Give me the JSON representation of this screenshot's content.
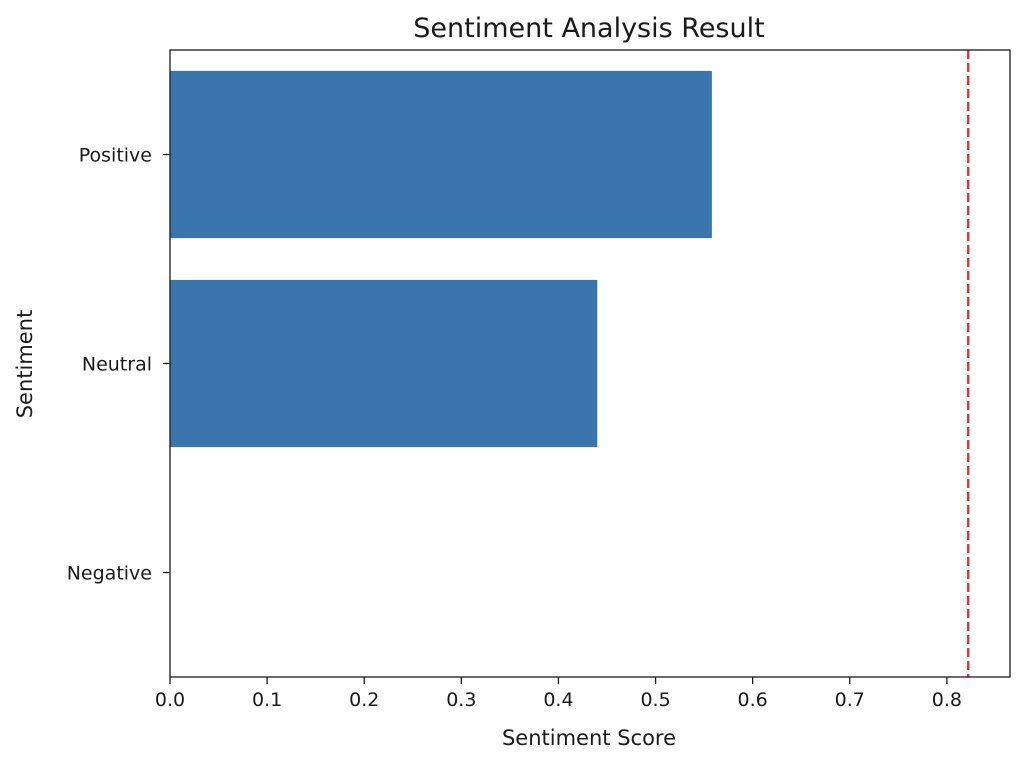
{
  "chart_data": {
    "type": "bar",
    "orientation": "horizontal",
    "title": "Sentiment Analysis Result",
    "xlabel": "Sentiment Score",
    "ylabel": "Sentiment",
    "categories": [
      "Positive",
      "Neutral",
      "Negative"
    ],
    "values": [
      0.558,
      0.44,
      0.0
    ],
    "xlim": [
      0,
      0.865
    ],
    "xticks": [
      "0.0",
      "0.1",
      "0.2",
      "0.3",
      "0.4",
      "0.5",
      "0.6",
      "0.7",
      "0.8"
    ],
    "reference_line": {
      "x": 0.822,
      "style": "dashed"
    },
    "grid": false,
    "legend": "none",
    "colors": {
      "bar": "#3a75ae",
      "reference_line": "#e3342f",
      "axis": "#1a1a1a"
    }
  }
}
